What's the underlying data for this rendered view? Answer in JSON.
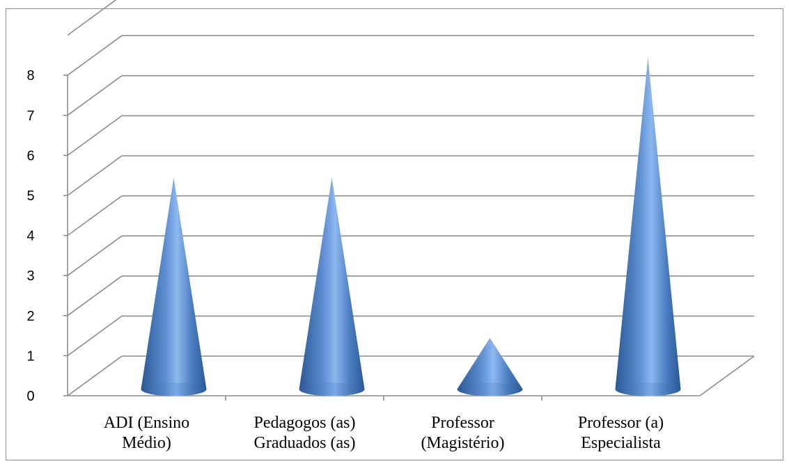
{
  "chart_data": {
    "type": "bar",
    "style": "3d-cone",
    "categories": [
      [
        "ADI (Ensino",
        "Médio)"
      ],
      [
        "Pedagogos (as)",
        "Graduados (as)"
      ],
      [
        "Professor",
        "(Magistério)"
      ],
      [
        "Professor (a)",
        "Especialista"
      ]
    ],
    "values": [
      5,
      5,
      1,
      8
    ],
    "ylim": [
      0,
      8
    ],
    "yticks": [
      "0",
      "1",
      "2",
      "3",
      "4",
      "5",
      "6",
      "7",
      "8"
    ],
    "grid": true,
    "legend": "none",
    "colors": {
      "cone_edge": "#2e5d9a",
      "cone_mid": "#8bb6ef",
      "grid": "#8c8c8c"
    }
  }
}
